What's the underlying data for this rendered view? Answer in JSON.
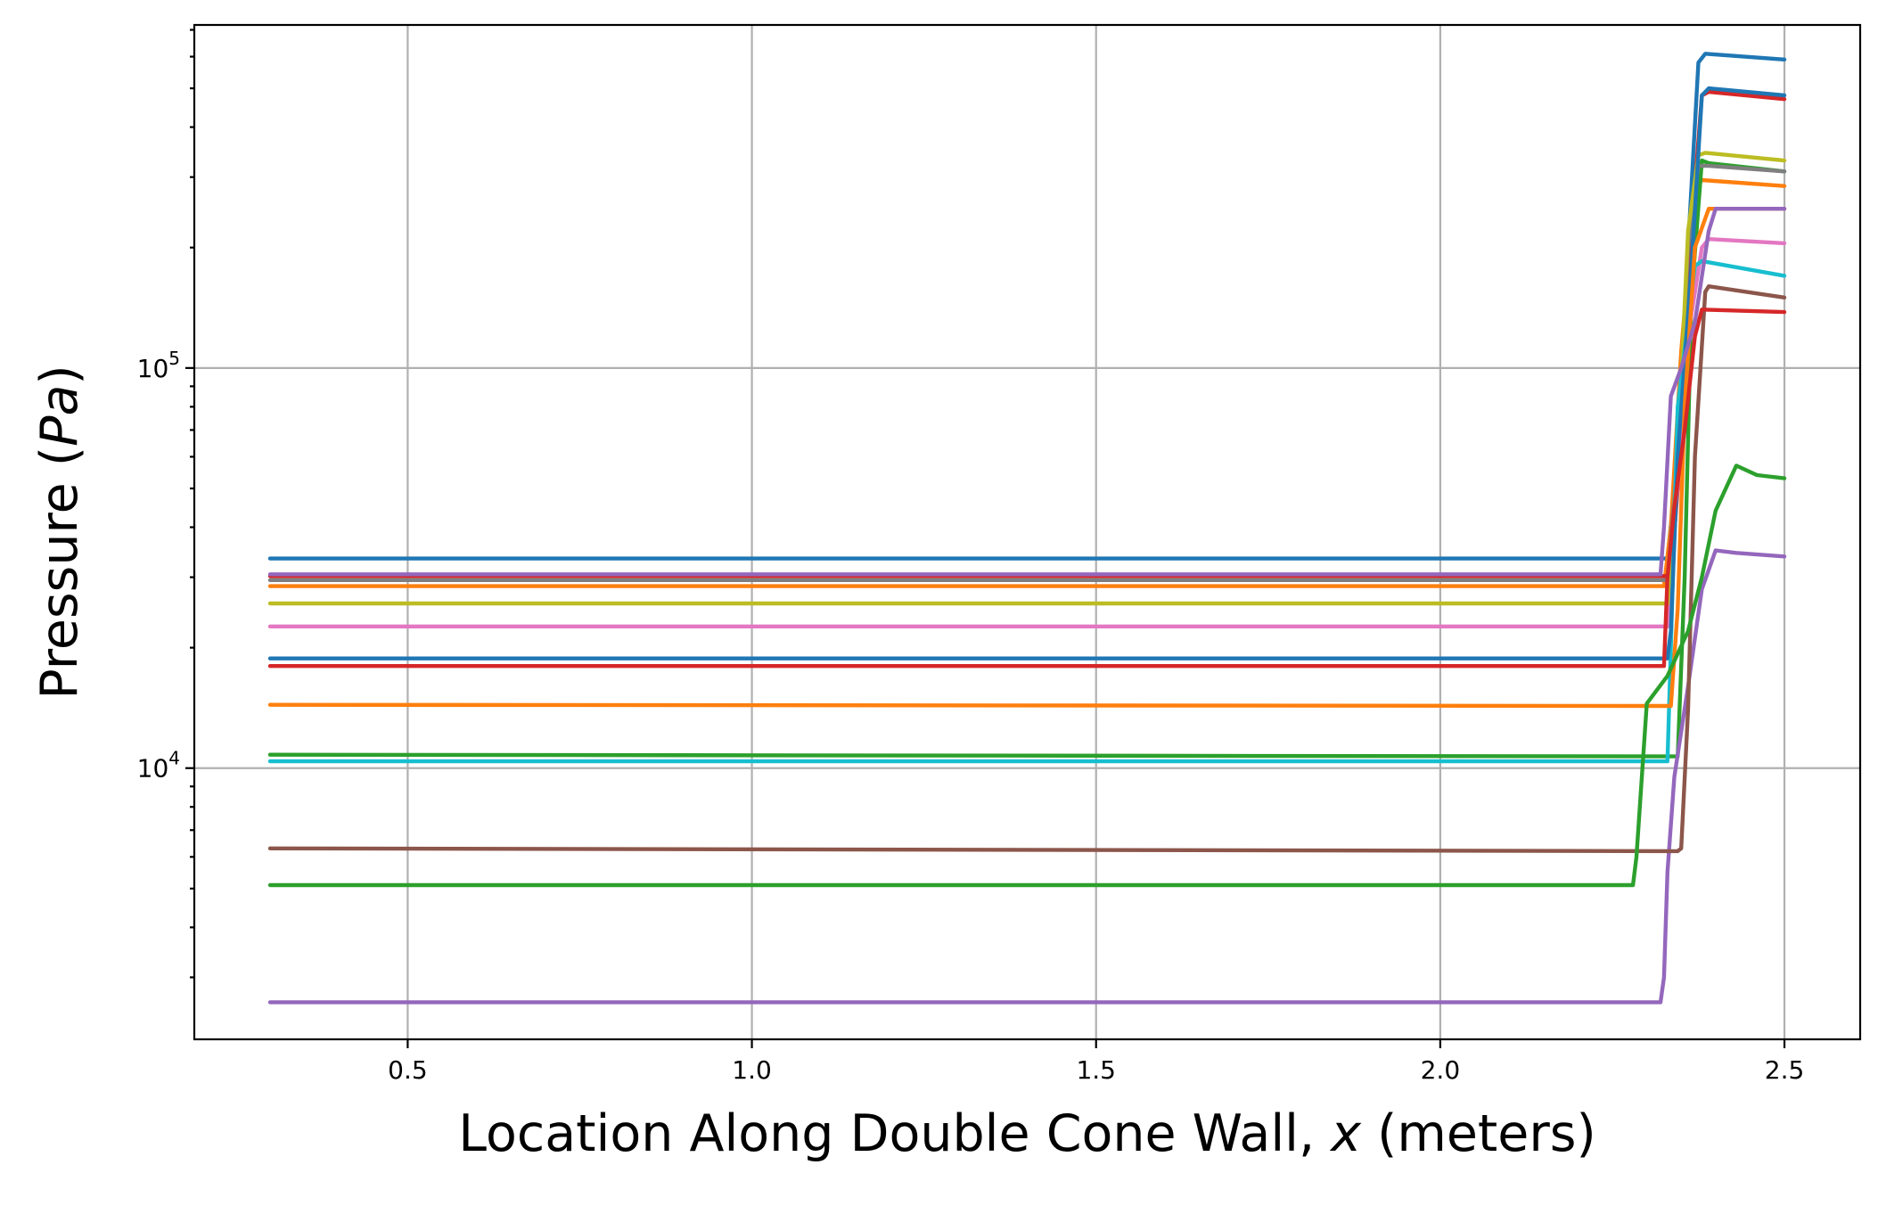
{
  "chart_data": {
    "type": "line",
    "title": "",
    "xlabel": {
      "prefix": "Location Along Double Cone Wall, ",
      "var": "x",
      "suffix": " (meters)"
    },
    "ylabel": {
      "prefix": "Pressure (",
      "var": "Pa",
      "suffix": ")"
    },
    "xlim": [
      0.19,
      2.61
    ],
    "ylim": [
      2100,
      720000
    ],
    "yscale": "log",
    "grid": true,
    "x_ticks": [
      0.5,
      1.0,
      1.5,
      2.0,
      2.5
    ],
    "x_tick_labels": [
      "0.5",
      "1.0",
      "1.5",
      "2.0",
      "2.5"
    ],
    "y_ticks": [
      {
        "value": 10000,
        "base": "10",
        "exp": "4"
      },
      {
        "value": 100000,
        "base": "10",
        "exp": "5"
      }
    ],
    "series": [
      {
        "color": "#1f77b4",
        "points": [
          [
            0.3,
            33400
          ],
          [
            2.33,
            33400
          ],
          [
            2.345,
            60000
          ],
          [
            2.36,
            200000
          ],
          [
            2.375,
            580000
          ],
          [
            2.385,
            610000
          ],
          [
            2.5,
            590000
          ]
        ]
      },
      {
        "color": "#ff7f0e",
        "points": [
          [
            0.3,
            28500
          ],
          [
            2.325,
            28500
          ],
          [
            2.335,
            40000
          ],
          [
            2.35,
            110000
          ],
          [
            2.37,
            280000
          ],
          [
            2.38,
            295000
          ],
          [
            2.5,
            285000
          ]
        ]
      },
      {
        "color": "#2ca02c",
        "points": [
          [
            0.3,
            10800
          ],
          [
            2.345,
            10700
          ],
          [
            2.355,
            30000
          ],
          [
            2.365,
            150000
          ],
          [
            2.38,
            330000
          ],
          [
            2.39,
            325000
          ],
          [
            2.5,
            310000
          ]
        ]
      },
      {
        "color": "#d62728",
        "points": [
          [
            0.3,
            30200
          ],
          [
            2.335,
            30200
          ],
          [
            2.345,
            50000
          ],
          [
            2.36,
            170000
          ],
          [
            2.38,
            480000
          ],
          [
            2.39,
            490000
          ],
          [
            2.5,
            470000
          ]
        ]
      },
      {
        "color": "#9467bd",
        "points": [
          [
            0.3,
            2600
          ],
          [
            2.32,
            2600
          ],
          [
            2.325,
            3000
          ],
          [
            2.33,
            5500
          ],
          [
            2.34,
            9500
          ],
          [
            2.36,
            16000
          ],
          [
            2.38,
            28000
          ],
          [
            2.4,
            35000
          ],
          [
            2.43,
            34500
          ],
          [
            2.5,
            33800
          ]
        ]
      },
      {
        "color": "#8c564b",
        "points": [
          [
            0.3,
            6300
          ],
          [
            2.345,
            6200
          ],
          [
            2.35,
            6300
          ],
          [
            2.36,
            14000
          ],
          [
            2.37,
            60000
          ],
          [
            2.385,
            155000
          ],
          [
            2.39,
            160000
          ],
          [
            2.5,
            150000
          ]
        ]
      },
      {
        "color": "#e377c2",
        "points": [
          [
            0.3,
            22600
          ],
          [
            2.33,
            22600
          ],
          [
            2.34,
            40000
          ],
          [
            2.36,
            120000
          ],
          [
            2.38,
            200000
          ],
          [
            2.39,
            210000
          ],
          [
            2.5,
            205000
          ]
        ]
      },
      {
        "color": "#7f7f7f",
        "points": [
          [
            0.3,
            29500
          ],
          [
            2.33,
            29500
          ],
          [
            2.345,
            60000
          ],
          [
            2.36,
            200000
          ],
          [
            2.375,
            320000
          ],
          [
            2.39,
            320000
          ],
          [
            2.5,
            310000
          ]
        ]
      },
      {
        "color": "#bcbd22",
        "points": [
          [
            0.3,
            25800
          ],
          [
            2.33,
            25800
          ],
          [
            2.345,
            60000
          ],
          [
            2.36,
            220000
          ],
          [
            2.375,
            340000
          ],
          [
            2.385,
            345000
          ],
          [
            2.5,
            330000
          ]
        ]
      },
      {
        "color": "#17becf",
        "points": [
          [
            0.3,
            10400
          ],
          [
            2.33,
            10400
          ],
          [
            2.335,
            20000
          ],
          [
            2.345,
            80000
          ],
          [
            2.37,
            180000
          ],
          [
            2.38,
            185000
          ],
          [
            2.5,
            170000
          ]
        ]
      },
      {
        "color": "#1f77b4",
        "points": [
          [
            0.3,
            18800
          ],
          [
            2.33,
            18800
          ],
          [
            2.335,
            22000
          ],
          [
            2.345,
            60000
          ],
          [
            2.365,
            180000
          ],
          [
            2.38,
            480000
          ],
          [
            2.39,
            500000
          ],
          [
            2.5,
            480000
          ]
        ]
      },
      {
        "color": "#ff7f0e",
        "points": [
          [
            0.3,
            14400
          ],
          [
            2.335,
            14300
          ],
          [
            2.345,
            25000
          ],
          [
            2.355,
            80000
          ],
          [
            2.37,
            200000
          ],
          [
            2.39,
            250000
          ],
          [
            2.5,
            250000
          ]
        ]
      },
      {
        "color": "#2ca02c",
        "points": [
          [
            0.3,
            5100
          ],
          [
            2.28,
            5100
          ],
          [
            2.285,
            6000
          ],
          [
            2.3,
            14500
          ],
          [
            2.33,
            17000
          ],
          [
            2.36,
            22000
          ],
          [
            2.38,
            30000
          ],
          [
            2.4,
            44000
          ],
          [
            2.43,
            57000
          ],
          [
            2.46,
            54000
          ],
          [
            2.5,
            53000
          ]
        ]
      },
      {
        "color": "#d62728",
        "points": [
          [
            0.3,
            18000
          ],
          [
            2.325,
            18000
          ],
          [
            2.33,
            30000
          ],
          [
            2.34,
            45000
          ],
          [
            2.355,
            70000
          ],
          [
            2.37,
            120000
          ],
          [
            2.38,
            140000
          ],
          [
            2.5,
            138000
          ]
        ]
      },
      {
        "color": "#9467bd",
        "points": [
          [
            0.3,
            30500
          ],
          [
            2.32,
            30500
          ],
          [
            2.325,
            40000
          ],
          [
            2.335,
            85000
          ],
          [
            2.35,
            100000
          ],
          [
            2.37,
            130000
          ],
          [
            2.39,
            220000
          ],
          [
            2.4,
            250000
          ],
          [
            2.5,
            250000
          ]
        ]
      }
    ]
  }
}
